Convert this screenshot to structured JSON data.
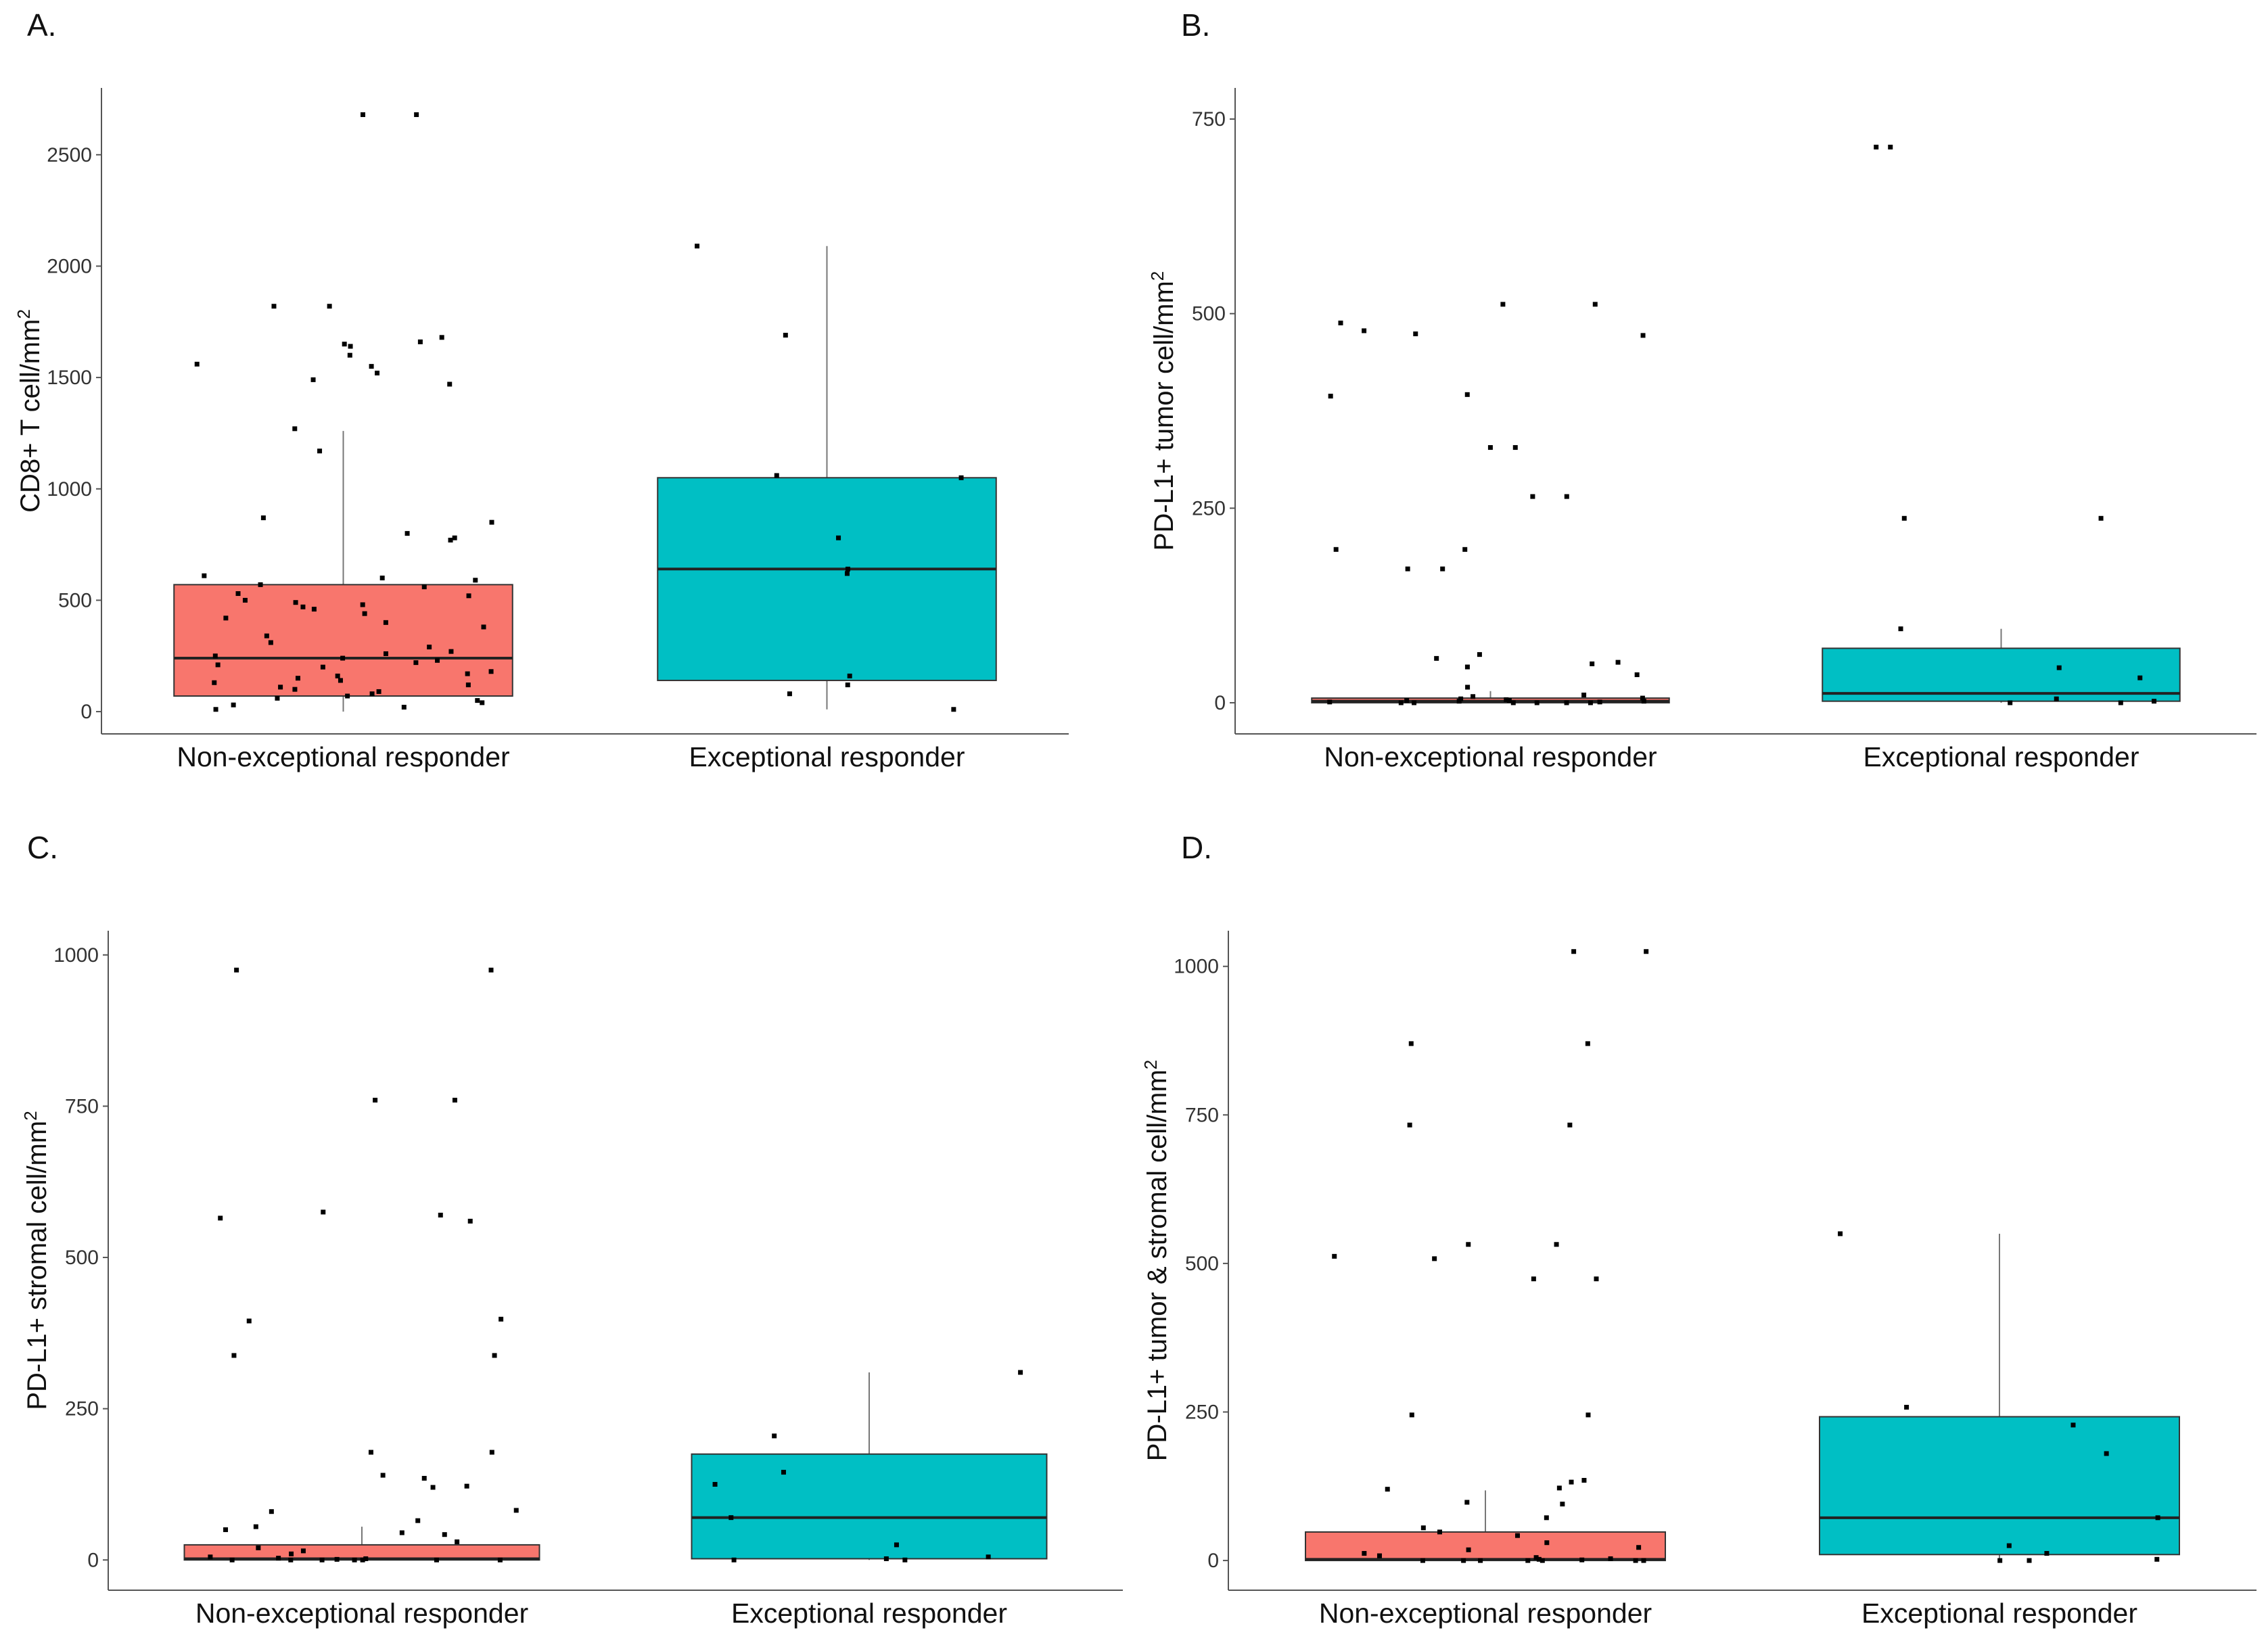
{
  "figure": {
    "panels": [
      "A.",
      "B.",
      "C.",
      "D."
    ]
  },
  "chart_data": [
    {
      "type": "boxplot",
      "panel": "A.",
      "ylabel": "CD8+ T cell/mm",
      "ylabel_sup": "2",
      "ylim": [
        -100,
        2800
      ],
      "yticks": [
        0,
        500,
        1000,
        1500,
        2000,
        2500
      ],
      "categories": [
        "Non-exceptional responder",
        "Exceptional responder"
      ],
      "colors": [
        "#F8766D",
        "#00BFC4"
      ],
      "boxes": [
        {
          "name": "Non-exceptional responder",
          "q1": 70,
          "median": 240,
          "q3": 570,
          "whisker_low": 0,
          "whisker_high": 1260
        },
        {
          "name": "Exceptional responder",
          "q1": 140,
          "median": 640,
          "q3": 1050,
          "whisker_low": 10,
          "whisker_high": 2090
        }
      ],
      "points": [
        {
          "group": 0,
          "values": [
            2680,
            2680,
            1820,
            1820,
            1680,
            1660,
            1650,
            1640,
            1600,
            1560,
            1550,
            1520,
            1490,
            1470,
            1270,
            1170,
            870,
            850,
            800,
            780,
            770,
            610,
            600,
            590,
            570,
            560,
            530,
            520,
            500,
            490,
            480,
            470,
            460,
            440,
            420,
            400,
            380,
            340,
            310,
            290,
            270,
            260,
            250,
            240,
            230,
            220,
            210,
            200,
            180,
            170,
            160,
            150,
            140,
            130,
            120,
            110,
            100,
            90,
            80,
            70,
            60,
            50,
            40,
            30,
            20,
            10
          ]
        },
        {
          "group": 1,
          "values": [
            2090,
            1690,
            1060,
            1050,
            780,
            640,
            620,
            160,
            120,
            80,
            10
          ]
        }
      ]
    },
    {
      "type": "boxplot",
      "panel": "B.",
      "ylabel": "PD-L1+ tumor cell/mm",
      "ylabel_sup": "2",
      "ylim": [
        -40,
        790
      ],
      "yticks": [
        0,
        250,
        500,
        750
      ],
      "categories": [
        "Non-exceptional responder",
        "Exceptional responder"
      ],
      "colors": [
        "#F8766D",
        "#00BFC4"
      ],
      "boxes": [
        {
          "name": "Non-exceptional responder",
          "q1": 0,
          "median": 2,
          "q3": 6,
          "whisker_low": 0,
          "whisker_high": 15
        },
        {
          "name": "Exceptional responder",
          "q1": 2,
          "median": 12,
          "q3": 70,
          "whisker_low": 0,
          "whisker_high": 95
        }
      ],
      "points": [
        {
          "group": 0,
          "values": [
            512,
            512,
            488,
            478,
            474,
            472,
            396,
            394,
            328,
            328,
            265,
            265,
            197,
            197,
            172,
            172,
            62,
            57,
            52,
            50,
            46,
            36,
            20,
            10,
            8,
            6,
            5,
            4,
            3,
            3,
            2,
            2,
            1,
            1,
            0,
            0,
            0,
            0,
            0,
            0
          ]
        },
        {
          "group": 1,
          "values": [
            714,
            714,
            237,
            237,
            95,
            45,
            32,
            5,
            2,
            0,
            0
          ]
        }
      ]
    },
    {
      "type": "boxplot",
      "panel": "C.",
      "ylabel": "PD-L1+ stromal cell/mm",
      "ylabel_sup": "2",
      "ylim": [
        -50,
        1040
      ],
      "yticks": [
        0,
        250,
        500,
        750,
        1000
      ],
      "categories": [
        "Non-exceptional responder",
        "Exceptional responder"
      ],
      "colors": [
        "#F8766D",
        "#00BFC4"
      ],
      "boxes": [
        {
          "name": "Non-exceptional responder",
          "q1": 0,
          "median": 2,
          "q3": 25,
          "whisker_low": 0,
          "whisker_high": 55
        },
        {
          "name": "Exceptional responder",
          "q1": 2,
          "median": 70,
          "q3": 175,
          "whisker_low": 0,
          "whisker_high": 310
        }
      ],
      "points": [
        {
          "group": 0,
          "values": [
            975,
            975,
            760,
            760,
            575,
            570,
            565,
            560,
            398,
            395,
            338,
            338,
            178,
            178,
            140,
            135,
            122,
            120,
            82,
            80,
            65,
            55,
            50,
            45,
            42,
            30,
            20,
            15,
            10,
            5,
            3,
            2,
            1,
            0,
            0,
            0,
            0,
            0,
            0,
            0
          ]
        },
        {
          "group": 1,
          "values": [
            310,
            205,
            145,
            125,
            70,
            25,
            5,
            2,
            0,
            0
          ]
        }
      ]
    },
    {
      "type": "boxplot",
      "panel": "D.",
      "ylabel": "PD-L1+ tumor & stromal cell/mm",
      "ylabel_sup": "2",
      "ylim": [
        -50,
        1060
      ],
      "yticks": [
        0,
        250,
        500,
        750,
        1000
      ],
      "categories": [
        "Non-exceptional responder",
        "Exceptional responder"
      ],
      "colors": [
        "#F8766D",
        "#00BFC4"
      ],
      "boxes": [
        {
          "name": "Non-exceptional responder",
          "q1": 0,
          "median": 2,
          "q3": 48,
          "whisker_low": 0,
          "whisker_high": 118
        },
        {
          "name": "Exceptional responder",
          "q1": 10,
          "median": 72,
          "q3": 242,
          "whisker_low": 0,
          "whisker_high": 550
        }
      ],
      "points": [
        {
          "group": 0,
          "values": [
            1025,
            1025,
            870,
            870,
            733,
            733,
            532,
            532,
            512,
            508,
            474,
            474,
            245,
            245,
            135,
            132,
            122,
            120,
            98,
            95,
            72,
            55,
            48,
            42,
            30,
            22,
            18,
            12,
            8,
            5,
            3,
            2,
            1,
            0,
            0,
            0,
            0,
            0,
            0,
            0
          ]
        },
        {
          "group": 1,
          "values": [
            550,
            258,
            228,
            180,
            72,
            25,
            12,
            2,
            0,
            0
          ]
        }
      ]
    }
  ]
}
